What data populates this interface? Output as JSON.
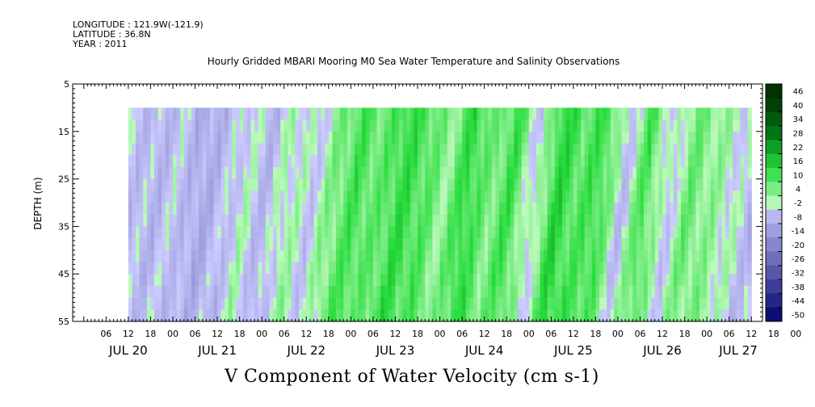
{
  "header": {
    "longitude": "LONGITUDE : 121.9W(-121.9)",
    "latitude": "LATITUDE : 36.8N",
    "year": "YEAR : 2011"
  },
  "chart_data": {
    "type": "heatmap",
    "title": "Hourly Gridded MBARI Mooring M0 Sea Water Temperature and Salinity Observations",
    "xlabel": "V Component of Water Velocity (cm s-1)",
    "ylabel": "DEPTH (m)",
    "y_range": [
      5,
      55
    ],
    "y_inverted": true,
    "y_ticks": [
      5,
      15,
      25,
      35,
      45,
      55
    ],
    "data_depth_range": [
      10,
      55
    ],
    "x_hour_ticks": [
      "06",
      "12",
      "18",
      "00",
      "06",
      "12",
      "18",
      "00",
      "06",
      "12",
      "18",
      "00",
      "06",
      "12",
      "18",
      "00",
      "06",
      "12",
      "18",
      "00",
      "06",
      "12",
      "18",
      "00",
      "06",
      "12",
      "18",
      "00",
      "06",
      "12",
      "18",
      "00"
    ],
    "x_day_labels": [
      "JUL 20",
      "JUL 21",
      "JUL 22",
      "JUL 23",
      "JUL 24",
      "JUL 25",
      "JUL 26",
      "JUL 27"
    ],
    "colorbar": {
      "levels": [
        -50,
        -44,
        -38,
        -32,
        -26,
        -20,
        -14,
        -8,
        -2,
        4,
        10,
        16,
        22,
        28,
        34,
        40,
        46
      ],
      "labels": [
        "46",
        "40",
        "34",
        "28",
        "22",
        "16",
        "10",
        "4",
        "-2",
        "-8",
        "-14",
        "-20",
        "-26",
        "-32",
        "-38",
        "-44",
        "-50"
      ],
      "low_color": "#000066",
      "mid_color": "#ccccff",
      "high_color": "#003300"
    },
    "band_profile": {
      "hours_from_jul20_00": [
        12,
        18,
        24,
        30,
        36,
        42,
        48,
        54,
        60,
        66,
        72,
        78,
        84,
        90,
        96,
        102,
        108,
        114,
        120,
        126,
        132,
        138,
        144,
        150,
        156,
        162,
        168,
        174,
        180
      ],
      "mean_v_cm_s": [
        -3,
        -5,
        -2,
        -8,
        -4,
        1,
        -5,
        3,
        -2,
        6,
        12,
        8,
        14,
        11,
        4,
        15,
        6,
        13,
        -3,
        16,
        10,
        13,
        -4,
        12,
        -3,
        8,
        4,
        1,
        -5
      ]
    }
  }
}
